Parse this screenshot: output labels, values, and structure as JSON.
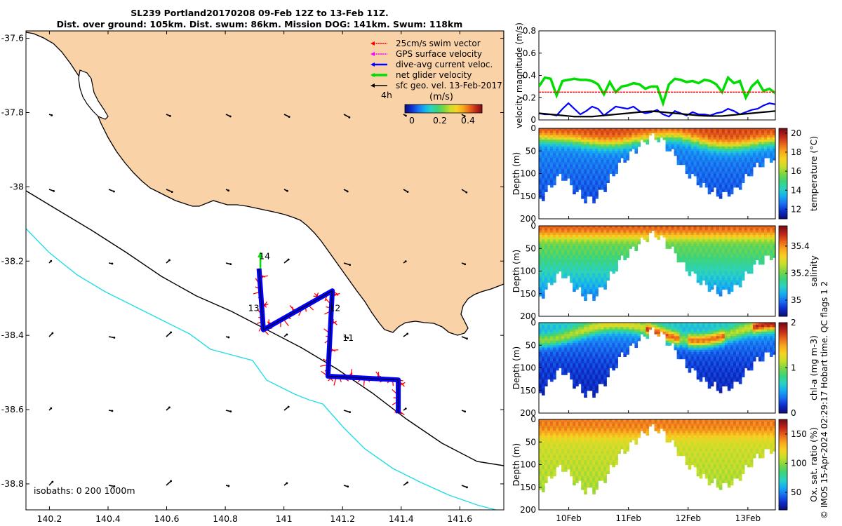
{
  "title_line1": "SL239 Portland20170208 09-Feb 12Z to 13-Feb 11Z.",
  "title_line2": "Dist. over ground: 105km. Dist. swum: 86km. Mission DOG: 141km. Swum: 118km",
  "footer_note": "© IMOS 15-Apr-2024 02:29:17 Hobart time. QC flags 1  2",
  "colors": {
    "land": "#fad2a8",
    "isobath_200": "#000000",
    "isobath_1000": "#22dde8",
    "swim": "#ff0000",
    "gps": "#ff00ff",
    "dive": "#0000ff",
    "net": "#00dd00",
    "sfc": "#000000"
  },
  "chart_data": [
    {
      "id": "map",
      "type": "vector_map",
      "x_ticks": [
        "140.2",
        "140.4",
        "140.6",
        "140.8",
        "141",
        "141.2",
        "141.4",
        "141.6"
      ],
      "y_ticks": [
        "-37.6",
        "-37.8",
        "-38",
        "-38.2",
        "-38.4",
        "-38.6",
        "-38.8"
      ],
      "xlim": [
        140.12,
        141.75
      ],
      "ylim": [
        -38.87,
        -37.58
      ],
      "legend": {
        "items": [
          {
            "label": "25cm/s swim vector",
            "color": "#ff0000"
          },
          {
            "label": "GPS surface velocity",
            "color": "#ff00ff"
          },
          {
            "label": "dive-avg current veloc.",
            "color": "#0000ff"
          },
          {
            "label": "net glider velocity",
            "color": "#00dd00"
          },
          {
            "label": "sfc geo. vel. 13-Feb-2017",
            "color": "#000000"
          }
        ],
        "interval_label": "4h",
        "unit_label": "(m/s)",
        "colorbar_ticks": [
          "0",
          "0.2",
          "0.4"
        ]
      },
      "isobaths_label": "isobaths: 0   200  1000m",
      "track_labels": [
        {
          "text": "14",
          "lon": 140.915,
          "lat": -38.195
        },
        {
          "text": "13",
          "lon": 140.878,
          "lat": -38.335
        },
        {
          "text": "12",
          "lon": 141.155,
          "lat": -38.335
        },
        {
          "text": "11",
          "lon": 141.2,
          "lat": -38.415
        }
      ],
      "track": [
        [
          141.39,
          -38.61
        ],
        [
          141.39,
          -38.52
        ],
        [
          141.15,
          -38.51
        ],
        [
          141.165,
          -38.28
        ],
        [
          140.93,
          -38.385
        ],
        [
          140.915,
          -38.22
        ]
      ]
    },
    {
      "id": "velocity",
      "type": "line",
      "ylabel": "velocity magnitude (m/s)",
      "y_ticks": [
        "0",
        "0.2",
        "0.4",
        "0.6",
        "0.8"
      ],
      "ylim": [
        0,
        0.8
      ],
      "series": [
        {
          "color": "#00dd00",
          "values": [
            0.3,
            0.38,
            0.37,
            0.22,
            0.35,
            0.36,
            0.37,
            0.36,
            0.36,
            0.35,
            0.32,
            0.23,
            0.34,
            0.25,
            0.3,
            0.31,
            0.33,
            0.32,
            0.28,
            0.3,
            0.3,
            0.15,
            0.32,
            0.37,
            0.36,
            0.34,
            0.35,
            0.33,
            0.36,
            0.35,
            0.32,
            0.25,
            0.38,
            0.33,
            0.35,
            0.2,
            0.3,
            0.35,
            0.26,
            0.28,
            0.24
          ]
        },
        {
          "color": "#ff0000",
          "values": [
            0.25,
            0.25,
            0.25,
            0.25,
            0.25,
            0.25,
            0.25,
            0.25,
            0.25,
            0.25,
            0.25,
            0.25,
            0.25,
            0.25,
            0.25,
            0.25,
            0.25,
            0.25,
            0.25,
            0.25,
            0.25,
            0.25,
            0.25,
            0.25,
            0.25,
            0.25,
            0.25,
            0.25,
            0.25,
            0.25,
            0.25,
            0.25,
            0.25,
            0.25,
            0.25,
            0.25,
            0.25,
            0.25,
            0.25,
            0.25,
            0.25
          ]
        },
        {
          "color": "#0000ff",
          "values": [
            0.06,
            0.05,
            0.05,
            0.04,
            0.1,
            0.15,
            0.1,
            0.05,
            0.08,
            0.12,
            0.1,
            0.04,
            0.08,
            0.12,
            0.11,
            0.1,
            0.12,
            0.08,
            0.06,
            0.07,
            0.09,
            0.05,
            0.03,
            0.08,
            0.06,
            0.04,
            0.07,
            0.05,
            0.05,
            0.04,
            0.06,
            0.07,
            0.1,
            0.08,
            0.05,
            0.07,
            0.09,
            0.1,
            0.13,
            0.15,
            0.14
          ]
        },
        {
          "color": "#000000",
          "values": [
            0.06,
            0.055,
            0.05,
            0.045,
            0.04,
            0.035,
            0.03,
            0.03,
            0.03,
            0.03,
            0.035,
            0.04,
            0.045,
            0.05,
            0.055,
            0.06,
            0.065,
            0.07,
            0.075,
            0.078,
            0.075,
            0.07,
            0.065,
            0.06,
            0.055,
            0.05,
            0.045,
            0.04,
            0.037,
            0.035,
            0.035,
            0.035,
            0.04,
            0.045,
            0.05,
            0.055,
            0.06,
            0.065,
            0.07,
            0.075,
            0.08
          ]
        }
      ]
    },
    {
      "id": "temperature",
      "type": "heatmap",
      "ylabel": "Depth (m)",
      "y_ticks": [
        "0",
        "50",
        "100",
        "150",
        "200"
      ],
      "ylim": [
        200,
        0
      ],
      "colorbar_label": "temperature (°C)",
      "colorbar_ticks": [
        "12",
        "14",
        "16",
        "18",
        "20"
      ],
      "clim": [
        11,
        20.5
      ],
      "surface_value": 19.3,
      "mixed_depth": 20,
      "deep_value": 12.8,
      "bottom_value": 12.2,
      "mixed_depths": [
        14,
        15,
        16,
        17,
        19,
        22,
        24,
        26,
        26,
        25,
        22,
        18,
        15,
        12,
        10,
        9,
        10,
        14,
        19,
        24,
        28,
        30,
        31,
        30,
        28,
        25,
        22,
        20
      ]
    },
    {
      "id": "salinity",
      "type": "heatmap",
      "ylabel": "Depth (m)",
      "y_ticks": [
        "0",
        "50",
        "100",
        "150",
        "200"
      ],
      "ylim": [
        200,
        0
      ],
      "colorbar_label": "salinity",
      "colorbar_ticks": [
        "35",
        "35.2",
        "35.4"
      ],
      "clim": [
        34.88,
        35.55
      ],
      "surface_value": 35.45,
      "mixed_depth": 15,
      "deep_value": 35.18,
      "bottom_value": 35.02
    },
    {
      "id": "chla",
      "type": "heatmap",
      "ylabel": "Depth (m)",
      "y_ticks": [
        "0",
        "50",
        "100",
        "150",
        "200"
      ],
      "ylim": [
        200,
        0
      ],
      "colorbar_label": "chl-a (mg m-3)",
      "colorbar_ticks": [
        "0",
        "1",
        "2"
      ],
      "clim": [
        0,
        2
      ],
      "surface_value": 0.65,
      "band_value": 1.3,
      "deep_value": 0.1
    },
    {
      "id": "oxygen",
      "type": "heatmap",
      "ylabel": "Depth (m)",
      "y_ticks": [
        "0",
        "50",
        "100",
        "150",
        "200"
      ],
      "ylim": [
        200,
        0
      ],
      "colorbar_label": "Ox. sat. ratio (%)",
      "colorbar_ticks": [
        "50",
        "100",
        "150"
      ],
      "clim": [
        20,
        175
      ],
      "surface_value": 145,
      "mixed_depth": 25,
      "deep_value": 112,
      "bottom_value": 105
    }
  ],
  "time_axis": {
    "ticks": [
      "10Feb",
      "11Feb",
      "12Feb",
      "13Feb"
    ],
    "start_day": 9.5,
    "end_day": 13.46
  },
  "glider_bottom_depth": [
    155,
    135,
    110,
    100,
    120,
    140,
    152,
    150,
    135,
    110,
    80,
    60,
    45,
    30,
    15,
    12,
    30,
    50,
    75,
    95,
    110,
    125,
    135,
    142,
    140,
    130,
    110,
    90,
    75,
    65,
    60
  ],
  "colormap": [
    "#0c0f78",
    "#0d2fcd",
    "#1a6ff2",
    "#15aef0",
    "#2bd3c0",
    "#3bd37b",
    "#7dd642",
    "#c9de2a",
    "#f6d323",
    "#f7a91e",
    "#e9661a",
    "#c0281a",
    "#7a0d16"
  ]
}
